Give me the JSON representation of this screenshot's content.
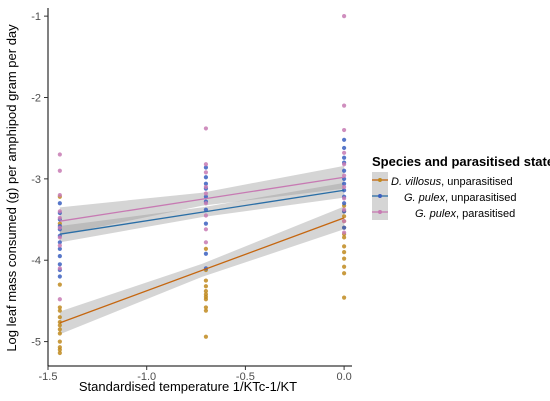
{
  "chart_data": {
    "type": "scatter",
    "xlabel": "Standardised temperature 1/KTc-1/KT",
    "ylabel": "Log leaf mass consumed (g) per amphipod gram per day",
    "xlim": [
      -1.5,
      0.04
    ],
    "ylim": [
      -5.3,
      -0.9
    ],
    "x_ticks": [
      -1.5,
      -1.0,
      -0.5,
      0.0
    ],
    "x_tick_labels": [
      "-1.5",
      "-1.0",
      "-0.5",
      "0.0"
    ],
    "y_ticks": [
      -5,
      -4,
      -3,
      -2,
      -1
    ],
    "y_tick_labels": [
      "-5",
      "-4",
      "-3",
      "-2",
      "-1"
    ],
    "grid": false,
    "legend": {
      "title": "Species and parasitised state",
      "placement": "right",
      "entries": [
        {
          "species": "D. villosus",
          "state": ", unparasitised"
        },
        {
          "species": "G. pulex",
          "state": ", unparasitised"
        },
        {
          "species": "G. pulex",
          "state": ", parasitised"
        }
      ]
    },
    "series": [
      {
        "color": "#c08a1e",
        "line_color": "#c5660f",
        "fit": {
          "x": [
            -1.44,
            0.0
          ],
          "y": [
            -4.77,
            -3.48
          ]
        },
        "ci_halfwidth": [
          0.14,
          0.08,
          0.14
        ],
        "points": {
          "x": [
            -1.44,
            -1.44,
            -1.44,
            -1.44,
            -1.44,
            -1.44,
            -1.44,
            -1.44,
            -1.44,
            -1.44,
            -1.44,
            -1.44,
            -1.44,
            -1.44,
            -0.7,
            -0.7,
            -0.7,
            -0.7,
            -0.7,
            -0.7,
            -0.7,
            -0.7,
            -0.7,
            -0.7,
            -0.7,
            0.0,
            0.0,
            0.0,
            0.0,
            0.0,
            0.0,
            0.0,
            0.0,
            0.0,
            0.0,
            0.0,
            0.0,
            0.0
          ],
          "y": [
            -3.22,
            -3.55,
            -4.58,
            -4.62,
            -4.7,
            -4.76,
            -4.8,
            -4.85,
            -4.9,
            -5.0,
            -5.07,
            -5.1,
            -5.14,
            -4.3,
            -4.12,
            -4.25,
            -4.32,
            -4.38,
            -4.42,
            -4.45,
            -4.48,
            -4.58,
            -4.62,
            -4.94,
            -3.86,
            -3.33,
            -3.4,
            -3.46,
            -3.52,
            -3.6,
            -3.68,
            -3.72,
            -3.83,
            -3.9,
            -3.98,
            -4.08,
            -4.16,
            -4.46
          ]
        }
      },
      {
        "color": "#3a5fbf",
        "line_color": "#2a6ea6",
        "fit": {
          "x": [
            -1.44,
            0.0
          ],
          "y": [
            -3.68,
            -3.14
          ]
        },
        "ci_halfwidth": [
          0.1,
          0.06,
          0.09
        ],
        "points": {
          "x": [
            -1.44,
            -1.44,
            -1.44,
            -1.44,
            -1.44,
            -1.44,
            -1.44,
            -1.44,
            -1.44,
            -1.44,
            -1.44,
            -1.44,
            -0.7,
            -0.7,
            -0.7,
            -0.7,
            -0.7,
            -0.7,
            -0.7,
            -0.7,
            -0.7,
            -0.7,
            0.0,
            0.0,
            0.0,
            0.0,
            0.0,
            0.0,
            0.0,
            0.0,
            0.0,
            0.0,
            0.0,
            0.0
          ],
          "y": [
            -3.3,
            -3.42,
            -3.5,
            -3.58,
            -3.62,
            -3.7,
            -3.78,
            -3.86,
            -3.95,
            -4.05,
            -4.12,
            -4.2,
            -2.86,
            -2.98,
            -3.06,
            -3.12,
            -3.22,
            -3.28,
            -3.38,
            -3.55,
            -3.92,
            -4.1,
            -2.52,
            -2.62,
            -2.74,
            -2.8,
            -2.9,
            -3.0,
            -3.06,
            -3.14,
            -3.22,
            -3.3,
            -3.4,
            -3.6
          ]
        }
      },
      {
        "color": "#c77ab3",
        "line_color": "#c77ab3",
        "fit": {
          "x": [
            -1.44,
            0.0
          ],
          "y": [
            -3.52,
            -2.98
          ]
        },
        "ci_halfwidth": [
          0.17,
          0.08,
          0.14
        ],
        "points": {
          "x": [
            -1.44,
            -1.44,
            -1.44,
            -1.44,
            -1.44,
            -1.44,
            -1.44,
            -1.44,
            -1.44,
            -1.44,
            -0.7,
            -0.7,
            -0.7,
            -0.7,
            -0.7,
            -0.7,
            -0.7,
            -0.7,
            -0.7,
            0.0,
            0.0,
            0.0,
            0.0,
            0.0,
            0.0,
            0.0,
            0.0,
            0.0,
            0.0,
            0.0
          ],
          "y": [
            -2.7,
            -2.9,
            -3.2,
            -3.4,
            -3.48,
            -3.6,
            -3.72,
            -3.82,
            -4.1,
            -4.48,
            -2.38,
            -2.82,
            -2.92,
            -3.1,
            -3.18,
            -3.3,
            -3.45,
            -3.62,
            -3.78,
            -1.0,
            -2.1,
            -2.4,
            -2.68,
            -2.82,
            -2.96,
            -3.1,
            -3.24,
            -3.38,
            -3.52,
            -3.66
          ]
        }
      }
    ]
  }
}
